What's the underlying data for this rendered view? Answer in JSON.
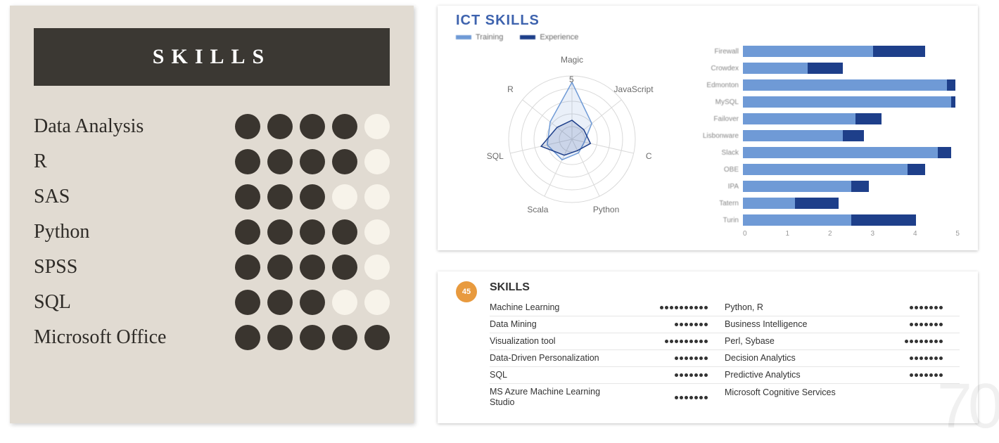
{
  "left_panel": {
    "title": "SKILLS",
    "title_bg": "#3b3833",
    "panel_bg": "#e1dbd2",
    "dot_filled_color": "#3a352f",
    "dot_empty_color": "#f7f3ea",
    "dot_max": 5,
    "label_fontsize": 28,
    "title_fontsize": 30,
    "items": [
      {
        "label": "Data Analysis",
        "filled": 4
      },
      {
        "label": "R",
        "filled": 4
      },
      {
        "label": "SAS",
        "filled": 3
      },
      {
        "label": "Python",
        "filled": 4
      },
      {
        "label": "SPSS",
        "filled": 4
      },
      {
        "label": "SQL",
        "filled": 3
      },
      {
        "label": "Microsoft Office",
        "filled": 5
      }
    ]
  },
  "ict_card": {
    "title": "ICT SKILLS",
    "title_color": "#3e63ae",
    "legend": [
      {
        "label": "Training",
        "color": "#6f9ad6"
      },
      {
        "label": "Experience",
        "color": "#1e3f8a"
      }
    ],
    "radar": {
      "axes": [
        "Magic",
        "JavaScript",
        "C",
        "Python",
        "Scala",
        "SQL",
        "R"
      ],
      "rings": 5,
      "ring_color": "#d9d9d9",
      "series": [
        {
          "color": "#6f9ad6",
          "fill_opacity": 0.15,
          "values": [
            4.5,
            2.0,
            1.0,
            1.2,
            1.8,
            2.0,
            2.2
          ]
        },
        {
          "color": "#1e3f8a",
          "fill_opacity": 0.15,
          "values": [
            1.5,
            1.2,
            1.5,
            1.0,
            1.4,
            2.5,
            1.5
          ]
        }
      ],
      "label_color": "#6b6b6b",
      "label_fontsize": 12
    },
    "bars": {
      "type": "stacked-bar-horizontal",
      "xlim": [
        0,
        5
      ],
      "xtick_step": 1,
      "grid_color": "#eeeeee",
      "seg1_color": "#6f9ad6",
      "seg2_color": "#1e3f8a",
      "categories": [
        "Firewall",
        "Crowdex",
        "Edmonton",
        "MySQL",
        "Failover",
        "Lisbonware",
        "Slack",
        "OBE",
        "IPA",
        "Tatern",
        "Turin"
      ],
      "seg1": [
        3.0,
        1.5,
        4.7,
        4.8,
        2.6,
        2.3,
        4.5,
        3.8,
        2.5,
        1.2,
        2.5
      ],
      "seg2": [
        1.2,
        0.8,
        0.2,
        0.1,
        0.6,
        0.5,
        0.3,
        0.4,
        0.4,
        1.0,
        1.5
      ]
    }
  },
  "skills_card": {
    "badge_text": "45",
    "badge_color": "#e89a3e",
    "heading": "SKILLS",
    "border_color": "#e6e6e6",
    "dot_color": "#333333",
    "label_fontsize": 12.5,
    "left_col": [
      {
        "name": "Machine Learning",
        "dots": 10
      },
      {
        "name": "Data Mining",
        "dots": 7
      },
      {
        "name": "Visualization tool",
        "dots": 9
      },
      {
        "name": "Data-Driven Personalization",
        "dots": 7
      },
      {
        "name": "SQL",
        "dots": 7
      },
      {
        "name": "MS Azure Machine Learning Studio",
        "dots": 7
      }
    ],
    "right_col": [
      {
        "name": "Python, R",
        "dots": 7
      },
      {
        "name": "Business Intelligence",
        "dots": 7
      },
      {
        "name": "Perl, Sybase",
        "dots": 8
      },
      {
        "name": "Decision Analytics",
        "dots": 7
      },
      {
        "name": "Predictive Analytics",
        "dots": 7
      },
      {
        "name": "Microsoft Cognitive Services",
        "dots": 0
      }
    ]
  },
  "watermark": "70"
}
